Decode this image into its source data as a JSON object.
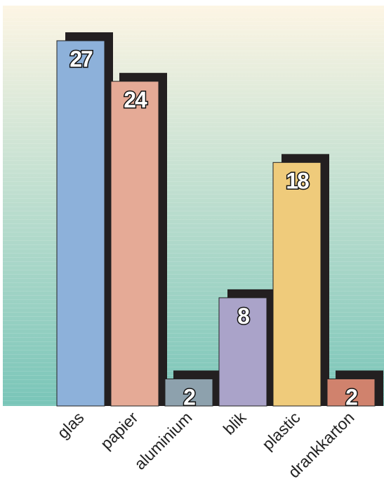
{
  "chart_data": {
    "type": "bar",
    "categories": [
      "glas",
      "papier",
      "aluminium",
      "blik",
      "plastic",
      "drankkarton"
    ],
    "values": [
      27,
      24,
      2,
      8,
      18,
      2
    ],
    "title": "",
    "xlabel": "",
    "ylabel": "",
    "ylim": [
      0,
      30
    ],
    "grid": false,
    "legend": "none",
    "colors": {
      "background_top": "#fdf5e4",
      "background_bottom": "#79c5b8",
      "shadow": "#231f20",
      "bar_outline": "#222222",
      "bars": [
        "#8db1da",
        "#e5aa96",
        "#8da1ad",
        "#aaa3c9",
        "#efcb7b",
        "#d0826d"
      ]
    }
  }
}
